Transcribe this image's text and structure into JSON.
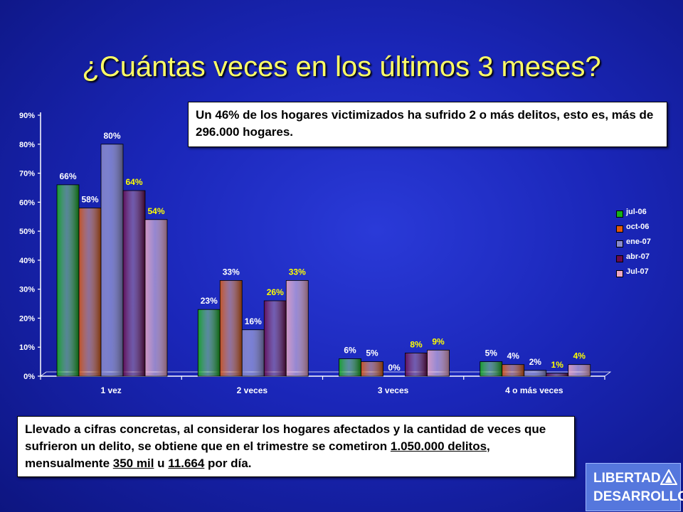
{
  "title": "¿Cuántas veces en los últimos 3 meses?",
  "callout_top": "Un 46% de los hogares victimizados ha sufrido 2 o más delitos, esto es, más de 296.000 hogares.",
  "callout_bottom": {
    "part1": "Llevado a cifras concretas, al considerar los hogares afectados y la cantidad de veces que sufrieron un delito, se obtiene que en el trimestre se cometiron ",
    "link1": "1.050.000 delitos,",
    "part2": " mensualmente ",
    "link2": "350 mil",
    "part3": " u ",
    "link3": "11.664",
    "part4": " por día."
  },
  "logo": {
    "line1": "LIBERTAD",
    "line2": "DESARROLLO"
  },
  "chart_data": {
    "type": "bar",
    "categories": [
      "1 vez",
      "2 veces",
      "3 veces",
      "4 o más veces"
    ],
    "series": [
      {
        "name": "jul-06",
        "color": "#16b016",
        "values": [
          66,
          23,
          6,
          5
        ],
        "labels": [
          "66%",
          "23%",
          "6%",
          "5%"
        ]
      },
      {
        "name": "oct-06",
        "color": "#e05a0c",
        "values": [
          58,
          33,
          5,
          4
        ],
        "labels": [
          "58%",
          "33%",
          "5%",
          "4%"
        ]
      },
      {
        "name": "ene-07",
        "color": "#8a8acc",
        "values": [
          80,
          16,
          0,
          2
        ],
        "labels": [
          "80%",
          "16%",
          "0%",
          "2%"
        ]
      },
      {
        "name": "abr-07",
        "color": "#6a0a4a",
        "values": [
          64,
          26,
          8,
          1
        ],
        "labels": [
          "64%",
          "26%",
          "8%",
          "1%"
        ]
      },
      {
        "name": "Jul-07",
        "color": "#f0a8c4",
        "values": [
          54,
          33,
          9,
          4
        ],
        "labels": [
          "54%",
          "33%",
          "9%",
          "4%"
        ]
      }
    ],
    "y_ticks": [
      "0%",
      "10%",
      "20%",
      "30%",
      "40%",
      "50%",
      "60%",
      "70%",
      "80%",
      "90%"
    ],
    "ylim": [
      0,
      90
    ],
    "label_colors": {
      "default": "#ffffff",
      "abr-07": "#ffff00",
      "Jul-07": "#ffff00"
    },
    "legend_position": "right",
    "grid": false
  }
}
